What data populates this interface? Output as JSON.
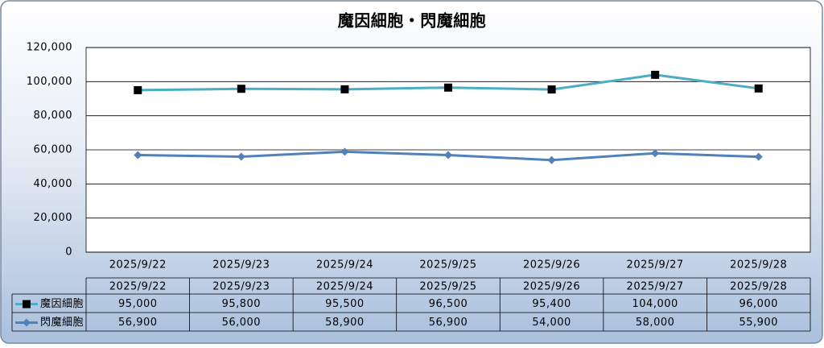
{
  "chart_data": {
    "type": "line",
    "title": "魔因細胞・閃魔細胞",
    "categories": [
      "2025/9/22",
      "2025/9/23",
      "2025/9/24",
      "2025/9/25",
      "2025/9/26",
      "2025/9/27",
      "2025/9/28"
    ],
    "series": [
      {
        "name": "魔因細胞",
        "color": "#4bacc6",
        "marker": "square",
        "marker_color": "#000000",
        "values": [
          95000,
          95800,
          95500,
          96500,
          95400,
          104000,
          96000
        ],
        "value_labels": [
          "95,000",
          "95,800",
          "95,500",
          "96,500",
          "95,400",
          "104,000",
          "96,000"
        ]
      },
      {
        "name": "閃魔細胞",
        "color": "#4f81bd",
        "marker": "diamond",
        "marker_color": "#4f81bd",
        "values": [
          56900,
          56000,
          58900,
          56900,
          54000,
          58000,
          55900
        ],
        "value_labels": [
          "56,900",
          "56,000",
          "58,900",
          "56,900",
          "54,000",
          "58,000",
          "55,900"
        ]
      }
    ],
    "ylim": [
      0,
      120000
    ],
    "yticks": [
      0,
      {
        "value": 20000,
        "label": "20,000"
      },
      {
        "value": 40000,
        "label": "40,000"
      },
      {
        "value": 60000,
        "label": "60,000"
      },
      {
        "value": 80000,
        "label": "80,000"
      },
      {
        "value": 100000,
        "label": "100,000"
      },
      {
        "value": 120000,
        "label": "120,000"
      }
    ],
    "grid": true,
    "data_table": true
  }
}
